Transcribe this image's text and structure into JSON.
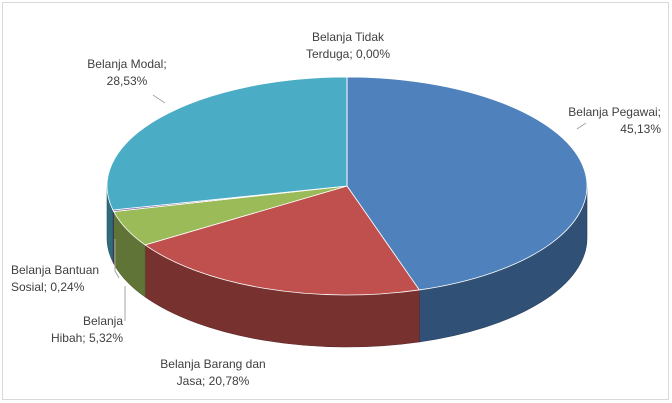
{
  "chart_data": {
    "type": "pie",
    "title": "",
    "series": [
      {
        "label": "Belanja Pegawai",
        "value": 45.13,
        "display": "Belanja Pegawai;\n45,13%",
        "color": "#4f81bd"
      },
      {
        "label": "Belanja Barang dan Jasa",
        "value": 20.78,
        "display": "Belanja Barang dan\nJasa; 20,78%",
        "color": "#c0504d"
      },
      {
        "label": "Belanja Hibah",
        "value": 5.32,
        "display": "Belanja\nHibah; 5,32%",
        "color": "#9bbb59"
      },
      {
        "label": "Belanja Bantuan Sosial",
        "value": 0.24,
        "display": "Belanja Bantuan\nSosial; 0,24%",
        "color": "#8064a2"
      },
      {
        "label": "Belanja Modal",
        "value": 28.53,
        "display": "Belanja Modal;\n28,53%",
        "color": "#4bacc6"
      },
      {
        "label": "Belanja Tidak Terduga",
        "value": 0.0,
        "display": "Belanja Tidak\nTerduga; 0,00%",
        "color": "#f79646"
      }
    ],
    "legend": "none",
    "style": "3d-exploded-pie"
  }
}
